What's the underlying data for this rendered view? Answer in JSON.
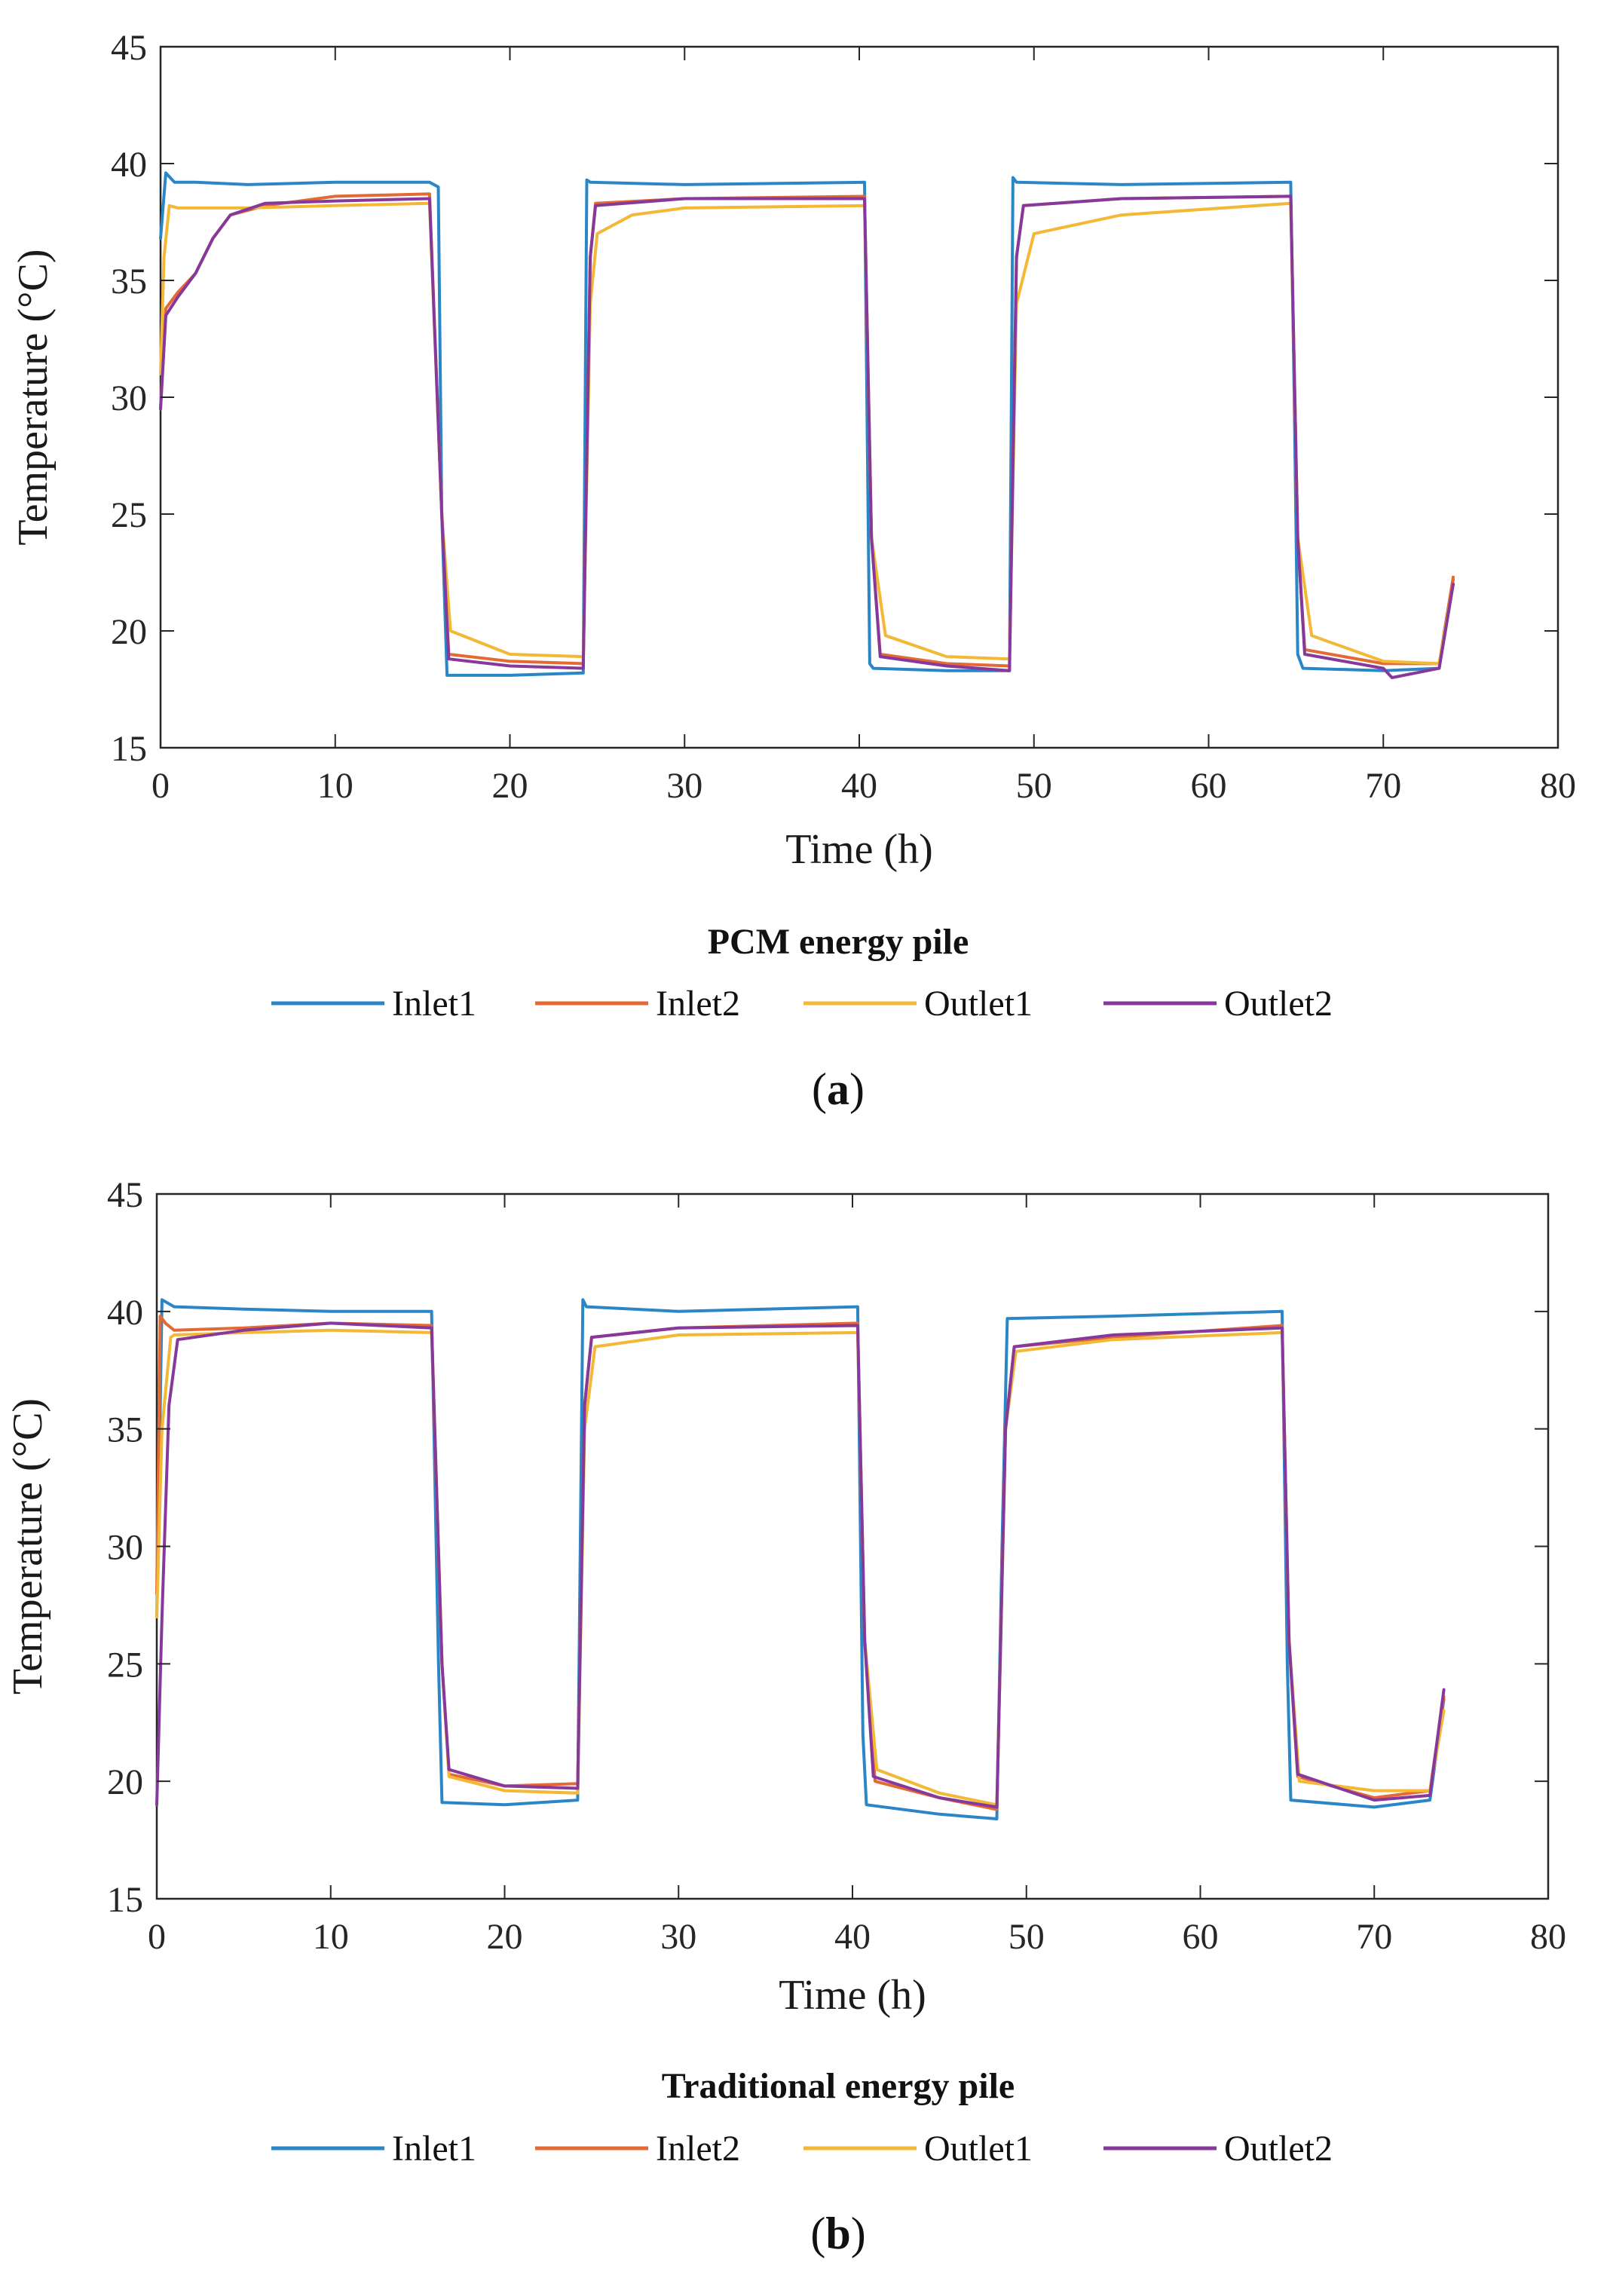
{
  "colors": {
    "Inlet1": "#2b86c7",
    "Inlet2": "#e36a33",
    "Outlet1": "#f2b836",
    "Outlet2": "#86399a",
    "axis": "#262626"
  },
  "chart_data": [
    {
      "panel_label": "a",
      "type": "line",
      "title": "PCM energy pile",
      "xlabel": "Time (h)",
      "ylabel": "Temperature (°C)",
      "xlim": [
        0,
        80
      ],
      "ylim": [
        15,
        45
      ],
      "xticks": [
        "0",
        "10",
        "20",
        "30",
        "40",
        "50",
        "60",
        "70",
        "80"
      ],
      "yticks": [
        "15",
        "20",
        "25",
        "30",
        "35",
        "40",
        "45"
      ],
      "grid": false,
      "legend": "bottom",
      "series": [
        {
          "name": "Inlet1",
          "x": [
            0,
            0.3,
            0.8,
            2,
            5,
            10,
            15.4,
            15.9,
            16.1,
            16.4,
            20,
            24.2,
            24.4,
            24.6,
            30,
            40.3,
            40.6,
            40.8,
            45,
            48.6,
            48.8,
            49,
            55,
            64.7,
            64.9,
            65.1,
            65.4,
            70,
            73.2,
            73.5,
            74
          ],
          "y": [
            36.8,
            39.6,
            39.2,
            39.2,
            39.1,
            39.2,
            39.2,
            39.0,
            25.0,
            18.1,
            18.1,
            18.2,
            39.3,
            39.2,
            39.1,
            39.2,
            18.6,
            18.4,
            18.3,
            18.3,
            39.4,
            39.2,
            39.1,
            39.2,
            30.0,
            19.0,
            18.4,
            18.3,
            18.4,
            20.0,
            22.2
          ]
        },
        {
          "name": "Inlet2",
          "x": [
            0,
            0.3,
            1,
            2,
            3,
            4,
            6,
            10,
            15.4,
            16.1,
            16.5,
            20,
            24.2,
            24.6,
            24.9,
            30,
            40.3,
            40.7,
            41.2,
            45,
            48.6,
            49,
            49.4,
            55,
            64.7,
            65.1,
            65.5,
            70,
            73.2,
            74
          ],
          "y": [
            29.5,
            33.8,
            34.5,
            35.3,
            36.8,
            37.8,
            38.2,
            38.6,
            38.7,
            25.0,
            19.0,
            18.7,
            18.6,
            36.0,
            38.3,
            38.5,
            38.6,
            24.0,
            19.0,
            18.6,
            18.5,
            36.0,
            38.2,
            38.5,
            38.6,
            24.0,
            19.2,
            18.6,
            18.6,
            22.3
          ]
        },
        {
          "name": "Outlet1",
          "x": [
            0,
            0.2,
            0.5,
            1,
            5,
            10,
            15.4,
            16.1,
            16.6,
            20,
            24.2,
            24.6,
            25,
            27,
            30,
            40.3,
            40.7,
            41.5,
            45,
            48.6,
            49,
            50,
            55,
            64.7,
            65.1,
            65.9,
            70,
            73.2,
            74
          ],
          "y": [
            31.0,
            36.0,
            38.2,
            38.1,
            38.1,
            38.2,
            38.3,
            25.0,
            20.0,
            19.0,
            18.9,
            34.0,
            37.0,
            37.8,
            38.1,
            38.2,
            24.0,
            19.8,
            18.9,
            18.8,
            34.0,
            37.0,
            37.8,
            38.3,
            24.0,
            19.8,
            18.7,
            18.6,
            22.0
          ]
        },
        {
          "name": "Outlet2",
          "x": [
            0,
            0.3,
            1,
            2,
            3,
            4,
            6,
            10,
            15.4,
            16.1,
            16.5,
            20,
            24.2,
            24.6,
            24.9,
            30,
            40.3,
            40.7,
            41.2,
            45,
            48.6,
            49,
            49.4,
            55,
            64.7,
            65.1,
            65.5,
            70,
            70.5,
            73.2,
            74
          ],
          "y": [
            29.5,
            33.5,
            34.3,
            35.3,
            36.8,
            37.8,
            38.3,
            38.4,
            38.5,
            25.0,
            18.8,
            18.5,
            18.4,
            36.0,
            38.2,
            38.5,
            38.5,
            24.0,
            18.9,
            18.5,
            18.3,
            36.0,
            38.2,
            38.5,
            38.6,
            24.0,
            19.0,
            18.4,
            18.0,
            18.4,
            22.0
          ]
        }
      ]
    },
    {
      "panel_label": "b",
      "type": "line",
      "title": "Traditional energy pile",
      "xlabel": "Time (h)",
      "ylabel": "Temperature (°C)",
      "xlim": [
        0,
        80
      ],
      "ylim": [
        15,
        45
      ],
      "xticks": [
        "0",
        "10",
        "20",
        "30",
        "40",
        "50",
        "60",
        "70",
        "80"
      ],
      "yticks": [
        "15",
        "20",
        "25",
        "30",
        "35",
        "40",
        "45"
      ],
      "grid": false,
      "legend": "bottom",
      "series": [
        {
          "name": "Inlet1",
          "x": [
            0,
            0.3,
            1,
            5,
            10,
            15.8,
            16.2,
            16.4,
            20,
            24.2,
            24.5,
            24.7,
            30,
            40.3,
            40.6,
            40.8,
            45,
            48.3,
            48.6,
            48.9,
            55,
            64.7,
            65,
            65.2,
            70,
            73.2,
            74
          ],
          "y": [
            27.0,
            40.5,
            40.2,
            40.1,
            40.0,
            40.0,
            25.0,
            19.1,
            19.0,
            19.2,
            40.5,
            40.2,
            40.0,
            40.2,
            22.0,
            19.0,
            18.6,
            18.4,
            30.0,
            39.7,
            39.8,
            40.0,
            25.0,
            19.2,
            18.9,
            19.2,
            23.5
          ]
        },
        {
          "name": "Inlet2",
          "x": [
            0,
            0.2,
            0.5,
            1,
            5,
            10,
            15.8,
            16.4,
            16.8,
            20,
            24.2,
            24.6,
            25,
            30,
            40.3,
            40.7,
            41.3,
            45,
            48.3,
            48.8,
            49.3,
            55,
            64.7,
            65.1,
            65.6,
            70,
            73.2,
            74
          ],
          "y": [
            28.0,
            39.8,
            39.5,
            39.2,
            39.3,
            39.5,
            39.4,
            25.0,
            20.3,
            19.8,
            19.9,
            36.0,
            38.9,
            39.3,
            39.5,
            26.0,
            20.0,
            19.3,
            18.8,
            35.0,
            38.5,
            38.9,
            39.4,
            26.0,
            20.2,
            19.3,
            19.6,
            23.6
          ]
        },
        {
          "name": "Outlet1",
          "x": [
            0,
            0.3,
            0.8,
            1,
            5,
            10,
            15.8,
            16.4,
            16.8,
            20,
            24.2,
            24.6,
            25.2,
            30,
            40.3,
            40.7,
            41.4,
            45,
            48.3,
            48.8,
            49.4,
            55,
            64.7,
            65.1,
            65.7,
            70,
            73.2,
            74
          ],
          "y": [
            27.0,
            35.0,
            38.9,
            39.0,
            39.1,
            39.2,
            39.1,
            25.0,
            20.2,
            19.6,
            19.5,
            35.0,
            38.5,
            39.0,
            39.1,
            26.0,
            20.5,
            19.5,
            19.0,
            35.0,
            38.3,
            38.8,
            39.1,
            26.0,
            20.0,
            19.6,
            19.6,
            23.0
          ]
        },
        {
          "name": "Outlet2",
          "x": [
            0,
            0.3,
            0.7,
            1.2,
            5,
            10,
            15.8,
            16.4,
            16.8,
            20,
            24.2,
            24.6,
            25,
            30,
            40.3,
            40.7,
            41.2,
            45,
            48.3,
            48.8,
            49.3,
            55,
            64.7,
            65.1,
            65.6,
            70,
            73.2,
            74
          ],
          "y": [
            19.0,
            27.0,
            36.0,
            38.8,
            39.2,
            39.5,
            39.3,
            25.0,
            20.5,
            19.8,
            19.7,
            36.0,
            38.9,
            39.3,
            39.4,
            26.0,
            20.2,
            19.3,
            18.9,
            35.0,
            38.5,
            39.0,
            39.3,
            26.0,
            20.3,
            19.2,
            19.4,
            23.9
          ]
        }
      ]
    }
  ]
}
